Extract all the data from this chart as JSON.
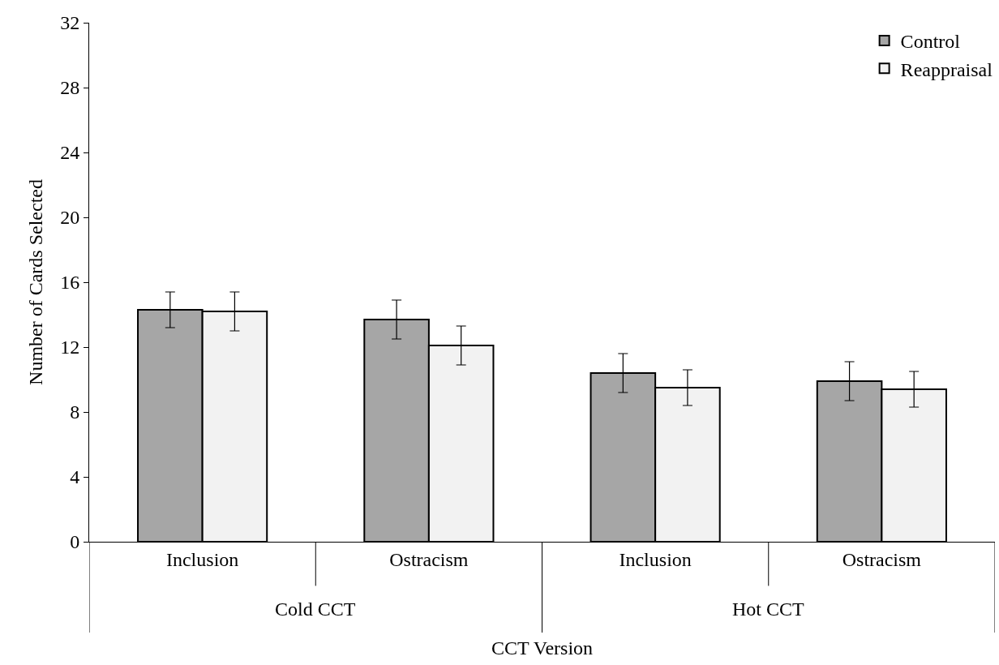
{
  "chart_data": {
    "type": "bar",
    "xlabel": "CCT Version",
    "ylabel": "Number of Cards Selected",
    "categories": [
      "Inclusion",
      "Ostracism",
      "Inclusion",
      "Ostracism"
    ],
    "annotations": [
      "Cold CCT",
      "Hot CCT"
    ],
    "series": [
      {
        "name": "Control",
        "color": "#a6a6a6",
        "values": [
          14.3,
          13.7,
          10.4,
          9.9
        ],
        "errors": [
          1.1,
          1.2,
          1.2,
          1.2
        ]
      },
      {
        "name": "Reappraisal",
        "color": "#f2f2f2",
        "values": [
          14.2,
          12.1,
          9.5,
          9.4
        ],
        "errors": [
          1.2,
          1.2,
          1.1,
          1.1
        ]
      }
    ],
    "ylim": [
      0,
      32
    ],
    "yticks": [
      0,
      4,
      8,
      12,
      16,
      20,
      24,
      28,
      32
    ],
    "grid": false,
    "legend": "top right"
  }
}
